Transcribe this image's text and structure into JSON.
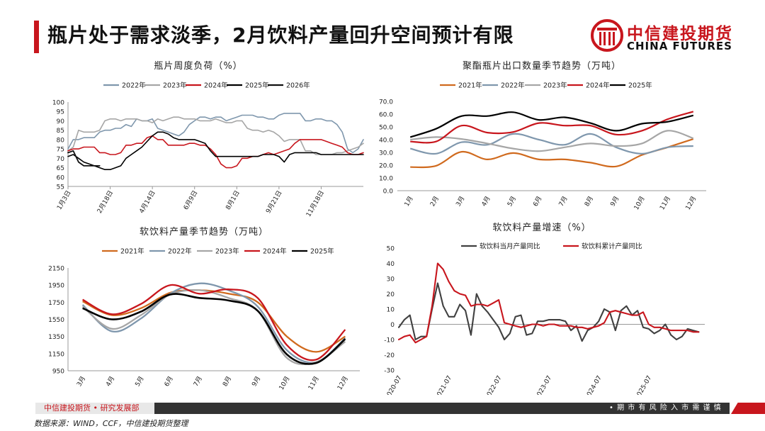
{
  "header": {
    "title": "瓶片处于需求淡季，2月饮料产量回升空间预计有限",
    "logo_cn": "中信建投期货",
    "logo_en": "CHINA FUTURES"
  },
  "footer": {
    "org": "中信建投期货 • 研究发展部",
    "risk": "• 期 市 有 风 险    入 市 需 谨 慎",
    "source": "数据来源：WIND，CCF，中信建投期货整理"
  },
  "colors": {
    "accent": "#c8161d",
    "s2021": "#d06a1e",
    "s2022": "#7f97ad",
    "s2023": "#a6a6a6",
    "s2024": "#c8161d",
    "s2025": "#000000",
    "s2026": "#111111",
    "yoy_month": "#404040",
    "yoy_cum": "#c8161d"
  },
  "chart_data": [
    {
      "id": "bottle-chip-load",
      "type": "line",
      "title": "瓶片周度负荷（%）",
      "categories_labels": [
        "1月3日",
        "2月18日",
        "4月14日",
        "6月9日",
        "8月1日",
        "9月21日",
        "11月18日"
      ],
      "ylim": [
        55,
        100
      ],
      "yticks": [
        55,
        60,
        65,
        70,
        75,
        80,
        85,
        90,
        95,
        100
      ],
      "series": [
        {
          "name": "2022年",
          "values": [
            75,
            80,
            80,
            81,
            81,
            81,
            84,
            85,
            85,
            86,
            86,
            88,
            87,
            91,
            90,
            90,
            91,
            86,
            85,
            84,
            83,
            82,
            84,
            88,
            90,
            92,
            92,
            91,
            92,
            92,
            90,
            91,
            92,
            93,
            93,
            93,
            92,
            92,
            91,
            91,
            93,
            94,
            94,
            94,
            94,
            90,
            90,
            91,
            91,
            90,
            90,
            88,
            84,
            75,
            73,
            75,
            80
          ]
        },
        {
          "name": "2023年",
          "values": [
            74,
            76,
            85,
            84,
            84,
            84,
            85,
            90,
            91,
            91,
            90,
            91,
            91,
            91,
            90,
            90,
            89,
            91,
            90,
            91,
            92,
            92,
            91,
            91,
            91,
            90,
            90,
            90,
            91,
            90,
            89,
            89,
            90,
            90,
            86,
            85,
            85,
            84,
            85,
            84,
            82,
            79,
            80,
            80,
            80,
            74,
            74,
            72,
            72,
            72,
            72,
            73,
            73,
            74,
            75,
            76,
            78
          ]
        },
        {
          "name": "2024年",
          "values": [
            74,
            75,
            75,
            76,
            76,
            76,
            73,
            73,
            72,
            72,
            73,
            77,
            77,
            78,
            78,
            81,
            82,
            80,
            80,
            77,
            77,
            77,
            77,
            78,
            78,
            77,
            77,
            75,
            72,
            67,
            65,
            65,
            66,
            70,
            70,
            71,
            71,
            72,
            73,
            72,
            73,
            74,
            75,
            78,
            80,
            80,
            80,
            80,
            80,
            79,
            78,
            77,
            76,
            73,
            72,
            72,
            73
          ]
        },
        {
          "name": "2025年",
          "values": [
            71,
            72,
            70,
            68,
            67,
            66,
            65,
            64,
            64,
            65,
            66,
            70,
            72,
            74,
            76,
            79,
            82,
            84,
            84,
            83,
            81,
            80,
            80,
            80,
            80,
            79,
            78,
            74,
            71,
            71,
            71,
            71,
            71,
            71,
            71,
            71,
            71,
            72,
            72,
            72,
            71,
            68,
            72,
            73,
            73,
            73,
            73,
            73,
            72,
            72,
            72,
            72,
            72,
            72,
            72,
            72,
            72
          ]
        },
        {
          "name": "2026年",
          "values": [
            73,
            74,
            68,
            66,
            66,
            66,
            66
          ]
        }
      ]
    },
    {
      "id": "pet-export",
      "type": "line",
      "title": "聚酯瓶片出口数量季节趋势（万吨）",
      "categories": [
        "1月",
        "2月",
        "3月",
        "4月",
        "5月",
        "6月",
        "7月",
        "8月",
        "9月",
        "10月",
        "11月",
        "12月"
      ],
      "ylim": [
        0,
        70
      ],
      "yticks": [
        0,
        10,
        20,
        30,
        40,
        50,
        60,
        70
      ],
      "series": [
        {
          "name": "2021年",
          "values": [
            18.5,
            19.5,
            30.5,
            24.5,
            29.5,
            24.5,
            24.5,
            22,
            19,
            28,
            34,
            40.5
          ]
        },
        {
          "name": "2022年",
          "values": [
            33,
            29,
            38,
            36,
            44.5,
            40,
            36,
            44.5,
            34,
            29,
            34,
            35
          ]
        },
        {
          "name": "2023年",
          "values": [
            40,
            42,
            40.5,
            37,
            33,
            31,
            34,
            37,
            35,
            37,
            47,
            41
          ]
        },
        {
          "name": "2024年",
          "values": [
            38.5,
            38.5,
            51,
            45.5,
            46,
            53,
            51,
            51,
            44,
            47,
            56,
            62
          ]
        },
        {
          "name": "2025年",
          "values": [
            42,
            48.5,
            58.5,
            58.5,
            61.5,
            55.5,
            57.5,
            53,
            47,
            52.5,
            54,
            59
          ]
        }
      ]
    },
    {
      "id": "soft-drink-output",
      "type": "line",
      "title": "软饮料产量季节趋势（万吨）",
      "categories": [
        "3月",
        "4月",
        "5月",
        "6月",
        "7月",
        "8月",
        "9月",
        "10月",
        "11月",
        "12月"
      ],
      "ylim": [
        950,
        2150
      ],
      "yticks": [
        950,
        1150,
        1350,
        1550,
        1750,
        1950,
        2150
      ],
      "series": [
        {
          "name": "2021年",
          "values": [
            1760,
            1600,
            1680,
            1860,
            1890,
            1850,
            1750,
            1350,
            1170,
            1350
          ]
        },
        {
          "name": "2022年",
          "values": [
            1720,
            1410,
            1560,
            1850,
            1970,
            1890,
            1700,
            1190,
            1050,
            1330
          ]
        },
        {
          "name": "2023年",
          "values": [
            1700,
            1440,
            1600,
            1840,
            1890,
            1800,
            1650,
            1100,
            1050,
            1290
          ]
        },
        {
          "name": "2024年",
          "values": [
            1780,
            1610,
            1730,
            1950,
            1850,
            1900,
            1800,
            1250,
            1080,
            1430
          ]
        },
        {
          "name": "2025年",
          "values": [
            1680,
            1550,
            1640,
            1840,
            1800,
            1770,
            1650,
            1140,
            1040,
            1320
          ]
        }
      ]
    },
    {
      "id": "soft-drink-yoy",
      "type": "line",
      "title": "软饮料产量增速（%）",
      "x_labels": [
        "2020-07",
        "2021-07",
        "2022-07",
        "2023-07",
        "2024-07",
        "2025-07"
      ],
      "ylim": [
        -30,
        50
      ],
      "yticks": [
        -30,
        -20,
        -10,
        0,
        10,
        20,
        30,
        40,
        50
      ],
      "series": [
        {
          "name": "软饮料当月产量同比",
          "values": [
            -2,
            3,
            6,
            -10,
            -8,
            -8,
            10,
            27,
            12,
            5,
            5,
            13,
            9,
            -7,
            20,
            12,
            8,
            3,
            -2,
            -10,
            -6,
            5,
            6,
            -7,
            -6,
            2,
            2,
            3,
            3,
            3,
            2,
            -4,
            -1,
            -11,
            -4,
            -2,
            2,
            10,
            8,
            -4,
            9,
            12,
            6,
            9,
            -2,
            -3,
            -6,
            -4,
            0,
            -7,
            -10,
            -8,
            -3,
            -4,
            -5
          ]
        },
        {
          "name": "软饮料累计产量同比",
          "values": [
            -10,
            -8,
            -7,
            -12,
            -10,
            -8,
            12,
            40,
            36,
            28,
            22,
            20,
            19,
            12,
            13,
            13,
            12,
            14,
            16,
            1,
            0,
            -1,
            -2,
            -1,
            0,
            0,
            -1,
            0,
            0,
            -1,
            -1,
            -1,
            -2,
            -2,
            -3,
            -2,
            -1,
            1,
            8,
            9,
            8,
            7,
            6,
            6,
            8,
            0,
            -2,
            -2,
            -3,
            -4,
            -4,
            -4,
            -4,
            -5,
            -5
          ]
        }
      ]
    }
  ]
}
